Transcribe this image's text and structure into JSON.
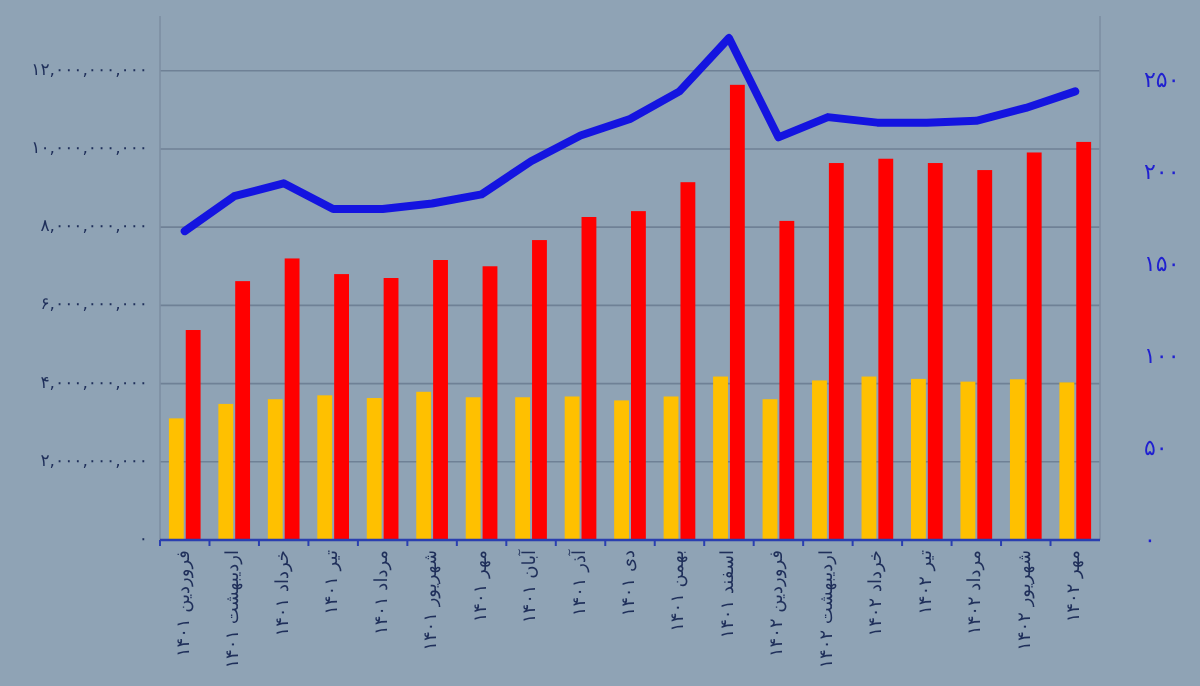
{
  "chart_data": {
    "type": "bar",
    "categories": [
      "فروردین ۱۴۰۱",
      "اردیبهشت ۱۴۰۱",
      "خرداد ۱۴۰۱",
      "تیر ۱۴۰۱",
      "مرداد ۱۴۰۱",
      "شهریور ۱۴۰۱",
      "مهر ۱۴۰۱",
      "آبان ۱۴۰۱",
      "آذر ۱۴۰۱",
      "دی ۱۴۰۱",
      "بهمن ۱۴۰۱",
      "اسفند ۱۴۰۱",
      "فروردین ۱۴۰۲",
      "اردیبهشت ۱۴۰۲",
      "خرداد ۱۴۰۲",
      "تیر ۱۴۰۲",
      "مرداد ۱۴۰۲",
      "شهریور ۱۴۰۲",
      "مهر ۱۴۰۲"
    ],
    "series": [
      {
        "color": "#ffc000",
        "values": [
          3110000000.0,
          3480000000.0,
          3600000000.0,
          3700000000.0,
          3630000000.0,
          3790000000.0,
          3650000000.0,
          3650000000.0,
          3670000000.0,
          3570000000.0,
          3670000000.0,
          4180000000.0,
          3600000000.0,
          4080000000.0,
          4180000000.0,
          4120000000.0,
          4050000000.0,
          4110000000.0,
          4030000000.0
        ]
      },
      {
        "color": "#ff0000",
        "values": [
          5370000000.0,
          6620000000.0,
          7200000000.0,
          6800000000.0,
          6700000000.0,
          7160000000.0,
          7000000000.0,
          7670000000.0,
          8260000000.0,
          8410000000.0,
          9150000000.0,
          11640000000.0,
          8160000000.0,
          9640000000.0,
          9750000000.0,
          9640000000.0,
          9460000000.0,
          9910000000.0,
          10180000000.0
        ]
      },
      {
        "type": "line",
        "axis": "y2",
        "color": "#1414e0",
        "values": [
          168,
          187,
          194,
          180,
          180,
          183,
          188,
          206,
          220,
          229,
          244,
          273,
          219,
          230,
          227,
          227,
          228,
          235,
          244
        ]
      }
    ],
    "ylim": [
      0,
      13400000000
    ],
    "yticks": [
      {
        "value": 0,
        "label": "۰"
      },
      {
        "value": 2000000000,
        "label": "۲,۰۰۰,۰۰۰,۰۰۰"
      },
      {
        "value": 4000000000,
        "label": "۴,۰۰۰,۰۰۰,۰۰۰"
      },
      {
        "value": 6000000000,
        "label": "۶,۰۰۰,۰۰۰,۰۰۰"
      },
      {
        "value": 8000000000,
        "label": "۸,۰۰۰,۰۰۰,۰۰۰"
      },
      {
        "value": 10000000000,
        "label": "۱۰,۰۰۰,۰۰۰,۰۰۰"
      },
      {
        "value": 12000000000,
        "label": "۱۲,۰۰۰,۰۰۰,۰۰۰"
      }
    ],
    "y2lim": [
      0,
      285
    ],
    "y2ticks": [
      {
        "value": 0,
        "label": "۰"
      },
      {
        "value": 50,
        "label": "۵۰"
      },
      {
        "value": 100,
        "label": "۱۰۰"
      },
      {
        "value": 150,
        "label": "۱۵۰"
      },
      {
        "value": 200,
        "label": "۲۰۰"
      },
      {
        "value": 250,
        "label": "۲۵۰"
      }
    ],
    "grid": "y"
  }
}
